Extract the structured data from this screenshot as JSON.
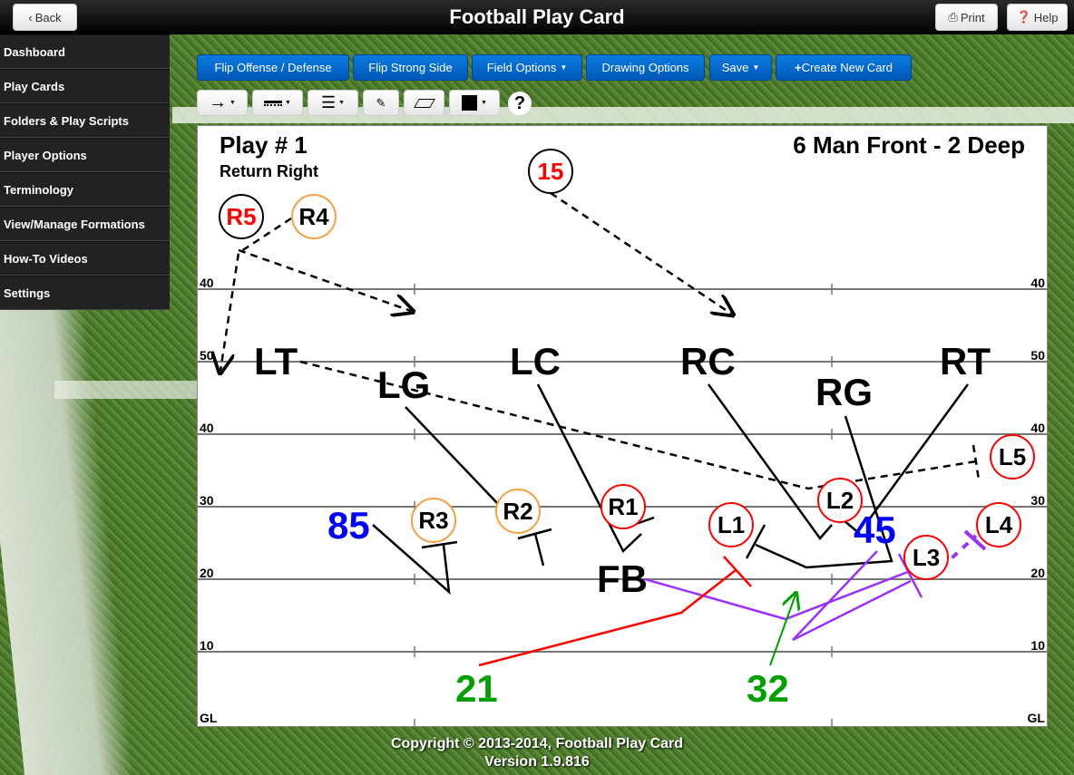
{
  "header": {
    "title": "Football Play Card",
    "back_label": "Back",
    "print_label": "Print",
    "help_label": "Help"
  },
  "sidebar": {
    "items": [
      {
        "label": "Dashboard"
      },
      {
        "label": "Play Cards"
      },
      {
        "label": "Folders & Play Scripts"
      },
      {
        "label": "Player Options"
      },
      {
        "label": "Terminology"
      },
      {
        "label": "View/Manage Formations"
      },
      {
        "label": "How-To Videos"
      },
      {
        "label": "Settings"
      }
    ]
  },
  "toolbar": {
    "flip_offense": "Flip Offense / Defense",
    "flip_strong": "Flip Strong Side",
    "field_options": "Field Options",
    "drawing_options": "Drawing Options",
    "save": "Save",
    "create_new": "Create New Card",
    "help_glyph": "?"
  },
  "tools": [
    "arrow-line-icon",
    "dash-line-icon",
    "line-weight-icon",
    "pencil-icon",
    "eraser-icon",
    "color-swatch-icon"
  ],
  "colors": {
    "accent": "#0a6fd6",
    "offense_circle": "#ff0000",
    "return_circle": "#f7a040",
    "blue_number": "#0000ff",
    "green_number": "#00a000",
    "purple_route": "#9b30ff"
  },
  "card": {
    "play_title": "Play # 1",
    "play_subtitle": "Return Right",
    "formation": "6 Man Front - 2 Deep",
    "yard_labels": [
      "40",
      "50",
      "40",
      "30",
      "20",
      "10",
      "GL"
    ],
    "circles": [
      {
        "label": "15"
      },
      {
        "label": "R5"
      },
      {
        "label": "R4"
      },
      {
        "label": "R3"
      },
      {
        "label": "R2"
      },
      {
        "label": "R1"
      },
      {
        "label": "L1"
      },
      {
        "label": "L2"
      },
      {
        "label": "L3"
      },
      {
        "label": "L4"
      },
      {
        "label": "L5"
      }
    ],
    "defenders": {
      "lt": "LT",
      "lg": "LG",
      "lc": "LC",
      "rc": "RC",
      "rg": "RG",
      "rt": "RT",
      "fb": "FB"
    },
    "numbers": {
      "n85": "85",
      "n45": "45",
      "n21": "21",
      "n32": "32"
    }
  },
  "footer": {
    "copyright": "Copyright © 2013-2014, Football Play Card",
    "version": "Version 1.9.816"
  }
}
